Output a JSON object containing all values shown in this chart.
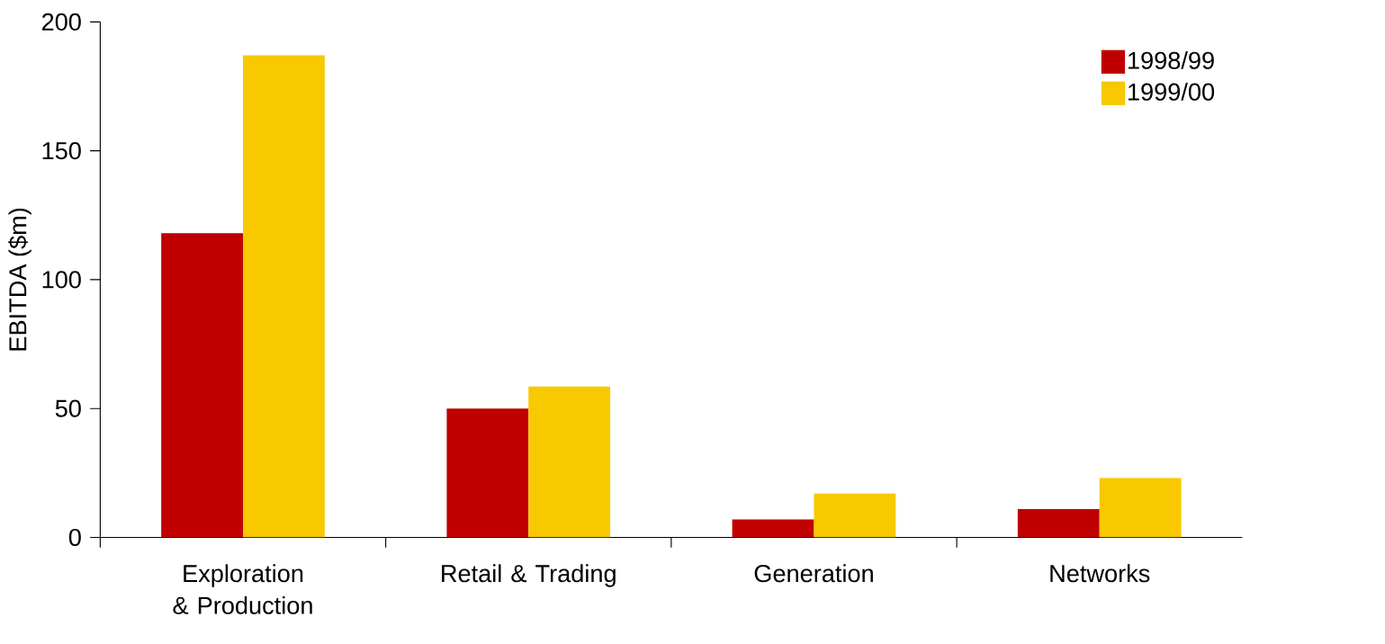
{
  "chart_data": {
    "type": "bar",
    "ylabel": "EBITDA ($m)",
    "categories": [
      "Exploration & Production",
      "Retail & Trading",
      "Generation",
      "Networks"
    ],
    "series": [
      {
        "name": "1998/99",
        "color": "#c00000",
        "values": [
          118,
          50,
          7,
          11
        ]
      },
      {
        "name": "1999/00",
        "color": "#f8c800",
        "values": [
          187,
          58.5,
          17,
          23
        ]
      }
    ],
    "ylim": [
      0,
      200
    ],
    "yticks": [
      0,
      50,
      100,
      150,
      200
    ],
    "legend": "top right"
  }
}
